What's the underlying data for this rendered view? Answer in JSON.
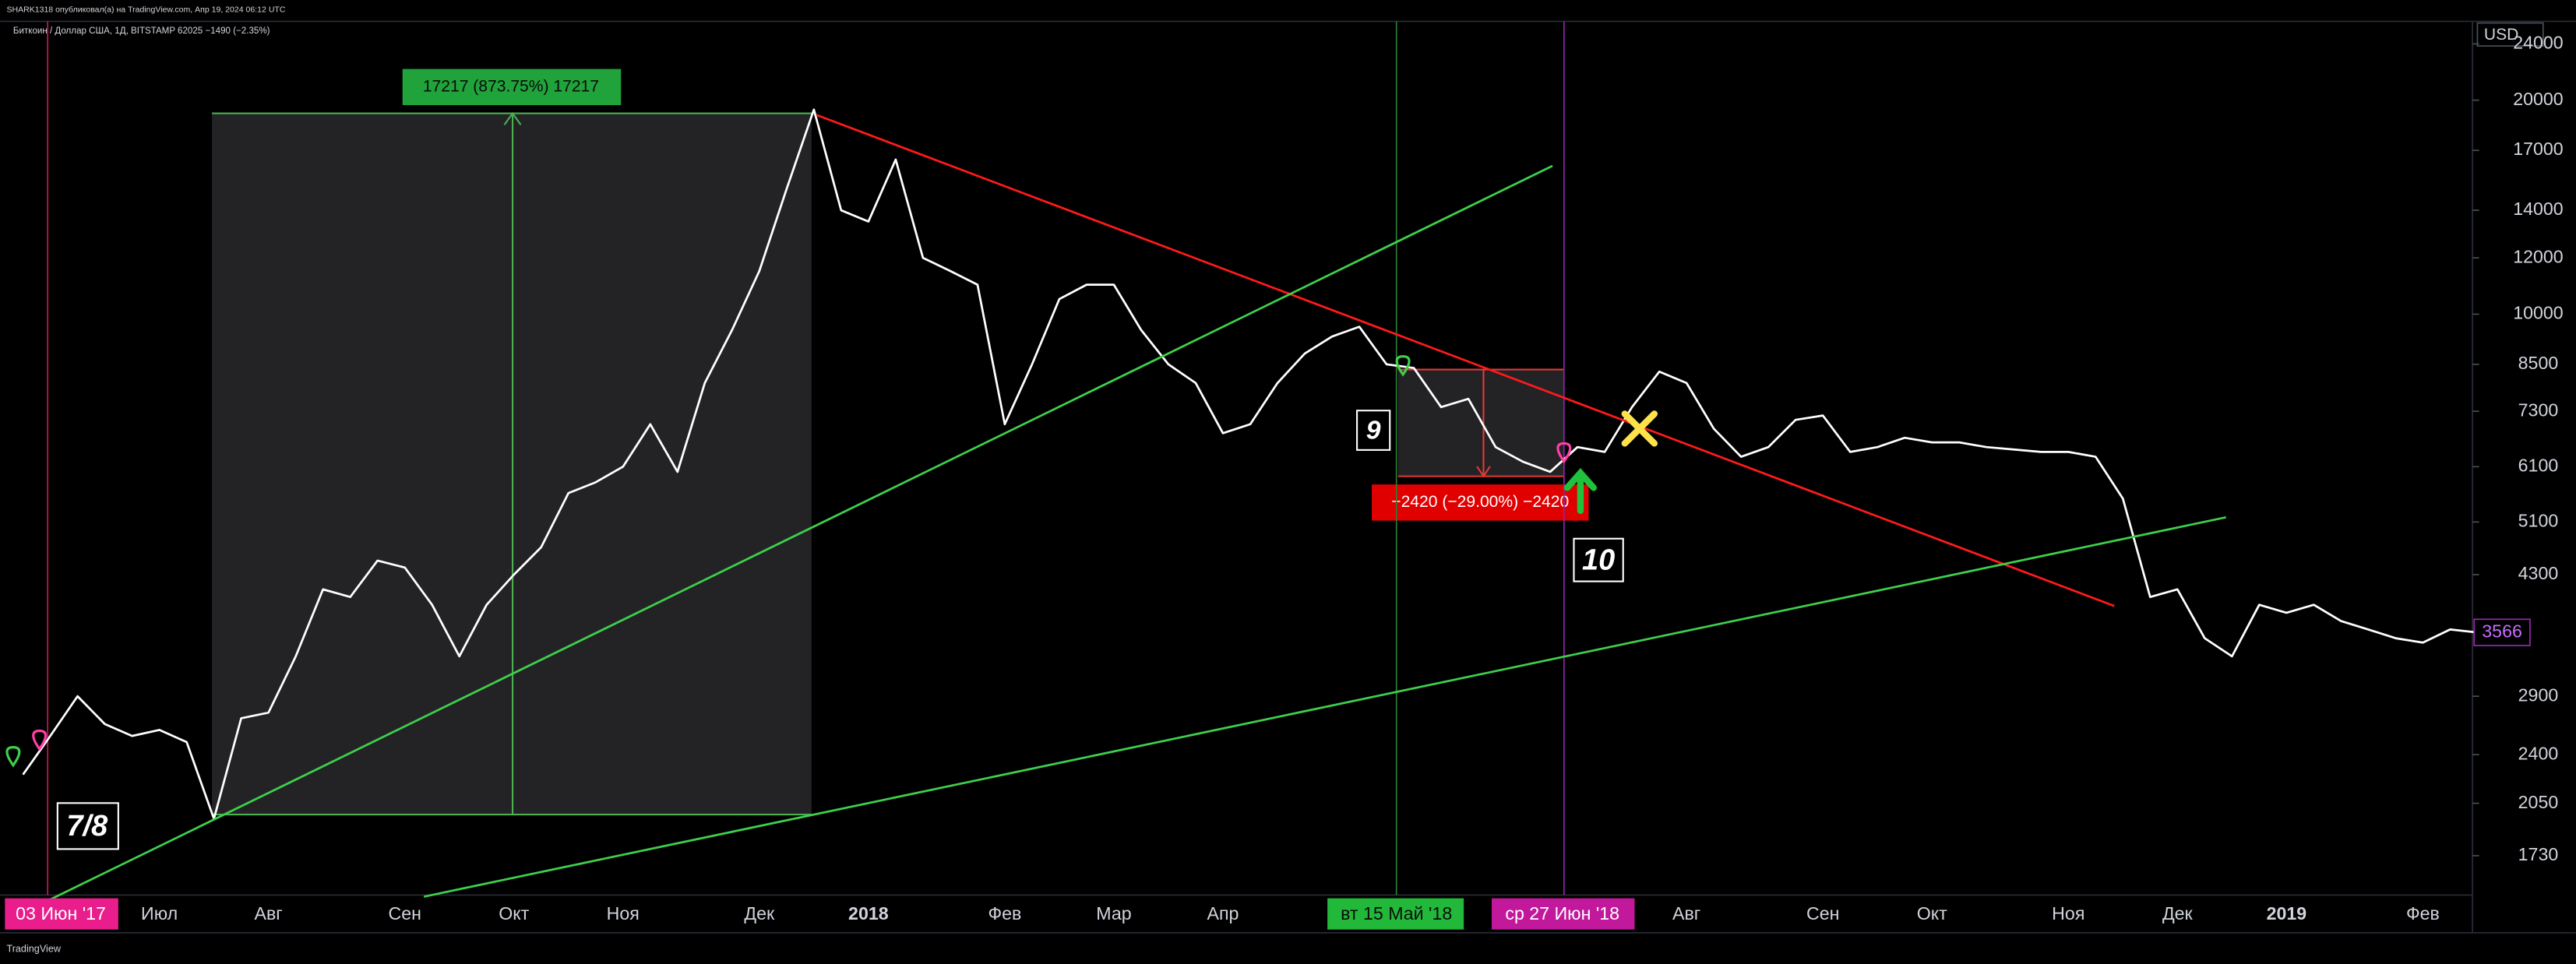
{
  "header": "SHARK1318 опубликовал(а) на TradingView.com, Апр 19, 2024 06:12 UTC",
  "footer": "TradingView",
  "chart_data": {
    "type": "line",
    "title": "Биткоин / Доллар США, 1Д, BITSTAMP  62025  −1490 (−2.35%)",
    "currency": "USD",
    "color": "#ffffff",
    "log_scale": true,
    "grid": false,
    "categories": [
      null,
      null,
      null,
      null,
      null,
      "Июл",
      null,
      null,
      null,
      "Авг",
      null,
      null,
      null,
      null,
      "Сен",
      null,
      null,
      null,
      "Окт",
      null,
      null,
      null,
      "Ноя",
      null,
      null,
      null,
      null,
      "Дек",
      null,
      null,
      null,
      "2018",
      null,
      null,
      null,
      null,
      "Фев",
      null,
      null,
      null,
      "Мар",
      null,
      null,
      null,
      "Апр",
      null,
      null,
      null,
      null,
      null,
      null,
      null,
      null,
      null,
      null,
      null,
      null,
      null,
      null,
      null,
      null,
      "Авг",
      null,
      null,
      null,
      null,
      "Сен",
      null,
      null,
      null,
      "Окт",
      null,
      null,
      null,
      null,
      "Ноя",
      null,
      null,
      null,
      "Дек",
      null,
      null,
      null,
      "2019",
      null,
      null,
      null,
      null,
      "Фев",
      null,
      null
    ],
    "values": [
      2250,
      2550,
      2900,
      2650,
      2550,
      2600,
      2500,
      1950,
      2700,
      2750,
      3300,
      4100,
      4000,
      4500,
      4400,
      3900,
      3300,
      3900,
      4300,
      4700,
      5600,
      5800,
      6100,
      7000,
      6000,
      8000,
      9500,
      11500,
      15000,
      19400,
      14000,
      13500,
      16500,
      12000,
      11500,
      11000,
      7000,
      8500,
      10500,
      11000,
      11000,
      9500,
      8500,
      8000,
      6800,
      7000,
      8000,
      8800,
      9300,
      9600,
      8500,
      8400,
      7400,
      7600,
      6500,
      6200,
      6000,
      6500,
      6400,
      7400,
      8300,
      8000,
      6900,
      6300,
      6500,
      7100,
      7200,
      6400,
      6500,
      6700,
      6600,
      6600,
      6500,
      6450,
      6400,
      6400,
      6300,
      5500,
      4000,
      4100,
      3500,
      3300,
      3900,
      3800,
      3900,
      3700,
      3600,
      3500,
      3450,
      3600,
      3566
    ],
    "ylim": [
      1523,
      25820
    ],
    "yticks": [
      24000,
      20000,
      17000,
      14000,
      12000,
      10000,
      8500,
      7300,
      6100,
      5100,
      4300,
      2900,
      2400,
      2050,
      1730
    ],
    "annotations": [
      "17217 (873.75%) 17217",
      "−2420 (−29.00%) −2420",
      "9",
      "10",
      "7/8",
      "03 Июн '17",
      "вт 15 Май '18",
      "ср 27 Июн '18"
    ]
  }
}
